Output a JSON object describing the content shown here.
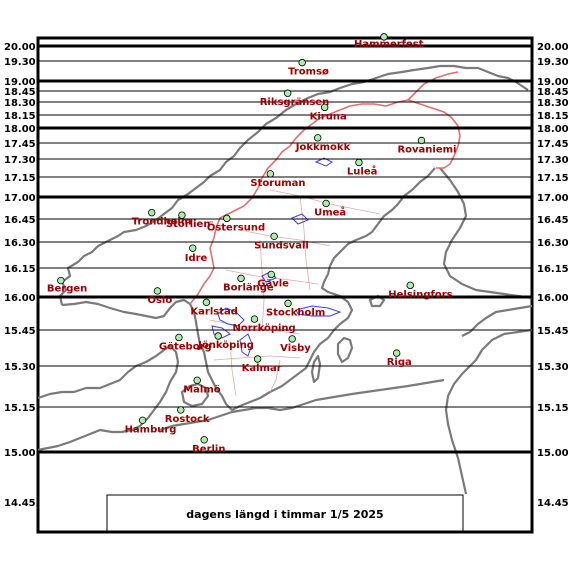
{
  "caption": "dagens längd i timmar   1/5 2025",
  "colors": {
    "coast": "#7a7a7a",
    "border": "#e07070",
    "province": "#e8a8a8",
    "water": "#3a3aff",
    "marker_fill": "#a8f0a8",
    "label": "#a00000"
  },
  "time_ticks": [
    {
      "label": "20.00",
      "hours": 20.0
    },
    {
      "label": "19.30",
      "hours": 19.5
    },
    {
      "label": "19.00",
      "hours": 19.0
    },
    {
      "label": "18.45",
      "hours": 18.75
    },
    {
      "label": "18.30",
      "hours": 18.5
    },
    {
      "label": "18.15",
      "hours": 18.25
    },
    {
      "label": "18.00",
      "hours": 18.0
    },
    {
      "label": "17.45",
      "hours": 17.75
    },
    {
      "label": "17.30",
      "hours": 17.5
    },
    {
      "label": "17.15",
      "hours": 17.25
    },
    {
      "label": "17.00",
      "hours": 17.0
    },
    {
      "label": "16.45",
      "hours": 16.75
    },
    {
      "label": "16.30",
      "hours": 16.5
    },
    {
      "label": "16.15",
      "hours": 16.25
    },
    {
      "label": "16.00",
      "hours": 16.0
    },
    {
      "label": "15.45",
      "hours": 15.75
    },
    {
      "label": "15.30",
      "hours": 15.5
    },
    {
      "label": "15.15",
      "hours": 15.25
    },
    {
      "label": "15.00",
      "hours": 15.0
    },
    {
      "label": "14.45",
      "hours": 14.75
    }
  ],
  "cities": [
    {
      "name": "Hammerfest",
      "lat": 70.66,
      "lon": 23.68
    },
    {
      "name": "Tromsø",
      "lat": 69.65,
      "lon": 18.96
    },
    {
      "name": "Riksgränsen",
      "lat": 68.43,
      "lon": 18.12
    },
    {
      "name": "Kiruna",
      "lat": 67.86,
      "lon": 20.23
    },
    {
      "name": "Jokkmokk",
      "lat": 66.61,
      "lon": 19.82
    },
    {
      "name": "Rovaniemi",
      "lat": 66.5,
      "lon": 25.73
    },
    {
      "name": "Luleå",
      "lat": 65.58,
      "lon": 22.15
    },
    {
      "name": "Storuman",
      "lat": 65.1,
      "lon": 17.11
    },
    {
      "name": "Umeå",
      "lat": 63.83,
      "lon": 20.26
    },
    {
      "name": "Trondheim",
      "lat": 63.43,
      "lon": 10.39
    },
    {
      "name": "Storlien",
      "lat": 63.32,
      "lon": 12.1
    },
    {
      "name": "Östersund",
      "lat": 63.18,
      "lon": 14.64
    },
    {
      "name": "Sundsvall",
      "lat": 62.39,
      "lon": 17.31
    },
    {
      "name": "Idre",
      "lat": 61.86,
      "lon": 12.72
    },
    {
      "name": "Bergen",
      "lat": 60.39,
      "lon": 5.32
    },
    {
      "name": "Borlänge",
      "lat": 60.49,
      "lon": 15.44
    },
    {
      "name": "Gävle",
      "lat": 60.67,
      "lon": 17.14
    },
    {
      "name": "Helsingfors",
      "lat": 60.17,
      "lon": 24.94
    },
    {
      "name": "Oslo",
      "lat": 59.91,
      "lon": 10.75
    },
    {
      "name": "Karlstad",
      "lat": 59.38,
      "lon": 13.5
    },
    {
      "name": "Stockholm",
      "lat": 59.33,
      "lon": 18.07
    },
    {
      "name": "Norrköping",
      "lat": 58.59,
      "lon": 16.19
    },
    {
      "name": "Göteborg",
      "lat": 57.71,
      "lon": 11.97
    },
    {
      "name": "Jönköping",
      "lat": 57.78,
      "lon": 14.16
    },
    {
      "name": "Visby",
      "lat": 57.64,
      "lon": 18.29
    },
    {
      "name": "Riga",
      "lat": 56.95,
      "lon": 24.11
    },
    {
      "name": "Kalmar",
      "lat": 56.66,
      "lon": 16.36
    },
    {
      "name": "Malmö",
      "lat": 55.6,
      "lon": 13.0
    },
    {
      "name": "Rostock",
      "lat": 54.09,
      "lon": 12.1
    },
    {
      "name": "Hamburg",
      "lat": 53.55,
      "lon": 9.99
    },
    {
      "name": "Berlin",
      "lat": 52.52,
      "lon": 13.4
    }
  ]
}
